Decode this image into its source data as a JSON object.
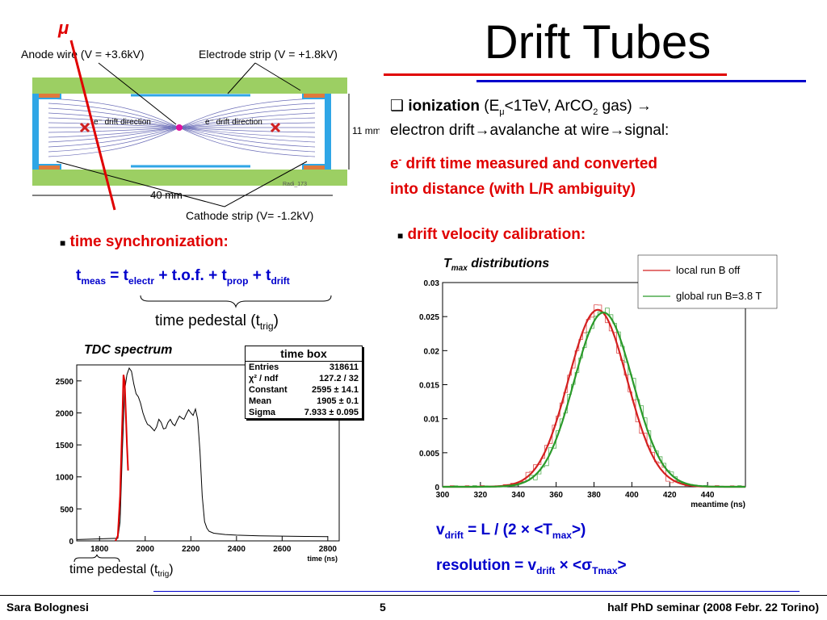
{
  "slide": {
    "title": "Drift Tubes",
    "mu_symbol": "μ"
  },
  "diagram": {
    "anode_label": "Anode wire (V = +3.6kV)",
    "electrode_label": "Electrode strip (V = +1.8kV)",
    "cathode_label": "Cathode strip (V= -1.2kV)",
    "width_label": "40 mm",
    "height_label": "11 mm",
    "drift_dir_left": "e⁻ drift direction",
    "drift_dir_right": "e⁻ drift direction",
    "ref_label": "Radi_173",
    "colors": {
      "green": "#9ccf63",
      "blue": "#2fa6e6",
      "orange": "#e07a3c",
      "field": "#6d6fb8",
      "wire": "#e0109e",
      "x": "#d02020"
    }
  },
  "ionization": {
    "bullet": "❑",
    "line1_bold": "ionization",
    "line1_a": " (E",
    "line1_sub": "μ",
    "line1_b": "<1TeV, ArCO",
    "line1_sub2": "2",
    "line1_c": " gas) →",
    "line2": "electron drift→avalanche at wire→signal:",
    "red1_a": "e",
    "red1_sup": "-",
    "red1_b": " drift time measured and converted",
    "red2": "into distance (with L/R ambiguity)"
  },
  "sync": {
    "heading": "time synchronization:",
    "t_meas": "t",
    "sub_meas": "meas",
    "eq1": " = t",
    "sub_electr": "electr",
    "eq2": " + t.o.f. + t",
    "sub_prop": "prop",
    "eq3": " + t",
    "sub_drift": "drift",
    "pedestal_a": "time pedestal (t",
    "pedestal_sub": "trig",
    "pedestal_b": ")"
  },
  "tdc": {
    "title": "TDC spectrum",
    "statbox_title": "time box",
    "stats": [
      {
        "name": "Entries",
        "value": "318611"
      },
      {
        "name": "χ² / ndf",
        "value": "127.2 / 32"
      },
      {
        "name": "Constant",
        "value": "2595 ± 14.1"
      },
      {
        "name": "Mean",
        "value": "1905 ± 0.1"
      },
      {
        "name": "Sigma",
        "value": "7.933 ± 0.095"
      }
    ],
    "xlabel": "time (ns)",
    "pedestal_a": "time pedestal (t",
    "pedestal_sub": "trig",
    "pedestal_b": ")"
  },
  "velocity": {
    "heading": "drift velocity calibration:",
    "vd_a": "v",
    "vd_sub": "drift",
    "vd_b": " = L / (2 × <T",
    "vd_sub2": "max",
    "vd_c": ">)",
    "res_a": "resolution = v",
    "res_sub": "drift",
    "res_b": " × <σ",
    "res_sub2": "Tmax",
    "res_c": ">"
  },
  "tmax": {
    "title_a": "T",
    "title_sub": "max",
    "title_b": " distributions",
    "legend": [
      {
        "name": "local run B off",
        "color": "#d42020"
      },
      {
        "name": "global run B=3.8 T",
        "color": "#2a9a2a"
      }
    ],
    "xlabel": "meantime (ns)"
  },
  "chart_data": [
    {
      "type": "line",
      "title": "TDC spectrum",
      "xlabel": "time (ns)",
      "ylabel": "",
      "xlim": [
        1700,
        2850
      ],
      "ylim": [
        0,
        2750
      ],
      "xticks": [
        1800,
        2000,
        2200,
        2400,
        2600,
        2800
      ],
      "yticks": [
        0,
        500,
        1000,
        1500,
        2000,
        2500
      ],
      "series": [
        {
          "name": "",
          "color": "#000000",
          "x": [
            1700,
            1880,
            1890,
            1900,
            1910,
            1920,
            1930,
            1940,
            1950,
            1960,
            1970,
            1980,
            1990,
            2000,
            2010,
            2020,
            2030,
            2040,
            2050,
            2060,
            2070,
            2080,
            2090,
            2100,
            2110,
            2120,
            2130,
            2140,
            2150,
            2160,
            2170,
            2180,
            2190,
            2200,
            2210,
            2220,
            2230,
            2240,
            2250,
            2260,
            2270,
            2280,
            2300,
            2350,
            2400,
            2500,
            2600,
            2700,
            2800
          ],
          "y": [
            20,
            40,
            300,
            1400,
            2350,
            2600,
            2700,
            2650,
            2450,
            2300,
            2250,
            2150,
            2000,
            1900,
            1820,
            1800,
            1760,
            1720,
            1780,
            1900,
            1850,
            1750,
            1760,
            1850,
            1900,
            1830,
            1800,
            1880,
            1950,
            1920,
            1900,
            1980,
            2050,
            2000,
            1960,
            2060,
            1900,
            1400,
            700,
            300,
            200,
            150,
            120,
            100,
            90,
            80,
            75,
            70,
            65
          ]
        },
        {
          "name": "",
          "color": "#e00000",
          "x": [
            1870,
            1880,
            1890,
            1900,
            1905,
            1910,
            1915,
            1920,
            1925
          ],
          "y": [
            0,
            80,
            700,
            1900,
            2595,
            2500,
            2000,
            1500,
            1100
          ]
        }
      ]
    },
    {
      "type": "line",
      "title": "Tmax distributions",
      "xlabel": "meantime (ns)",
      "xlim": [
        300,
        460
      ],
      "ylim": [
        0,
        0.03
      ],
      "xticks": [
        300,
        320,
        340,
        360,
        380,
        400,
        420,
        440
      ],
      "yticks": [
        0,
        0.005,
        0.01,
        0.015,
        0.02,
        0.025,
        0.03
      ],
      "series": [
        {
          "name": "local run B off",
          "color": "#d42020",
          "mean": 382,
          "sigma": 15.5,
          "peak": 0.026
        },
        {
          "name": "global run B=3.8 T",
          "color": "#2a9a2a",
          "mean": 385,
          "sigma": 15.5,
          "peak": 0.0256
        }
      ]
    }
  ],
  "footer": {
    "author": "Sara Bolognesi",
    "page": "5",
    "event": "half PhD seminar (2008 Febr. 22 Torino)"
  }
}
